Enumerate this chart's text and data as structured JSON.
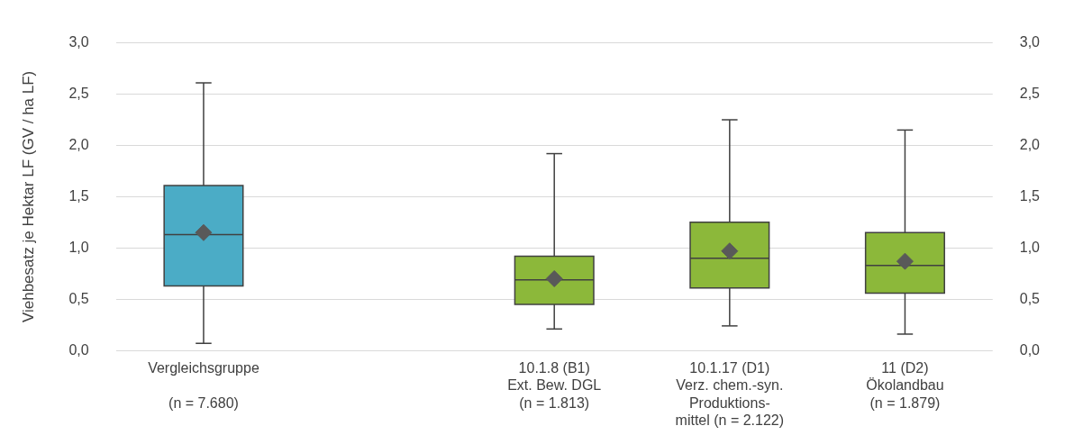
{
  "chart_data": {
    "type": "box",
    "ylabel": "Viehbesatz je Hektar LF (GV / ha LF)",
    "categories": [
      "Vergleichsgruppe\n\n(n = 7.680)",
      null,
      "10.1.8 (B1)\nExt. Bew. DGL\n(n = 1.813)",
      "10.1.17 (D1)\nVerz. chem.-syn.\nProduktions-\nmittel (n = 2.122)",
      "11 (D2)\nÖkolandbau\n(n = 1.879)"
    ],
    "boxes": [
      {
        "low": 0.07,
        "q1": 0.63,
        "median": 1.13,
        "q3": 1.61,
        "high": 2.61,
        "mean": 1.15
      },
      null,
      {
        "low": 0.21,
        "q1": 0.45,
        "median": 0.69,
        "q3": 0.92,
        "high": 1.92,
        "mean": 0.7
      },
      {
        "low": 0.24,
        "q1": 0.61,
        "median": 0.9,
        "q3": 1.25,
        "high": 2.25,
        "mean": 0.97
      },
      {
        "low": 0.16,
        "q1": 0.56,
        "median": 0.83,
        "q3": 1.15,
        "high": 2.15,
        "mean": 0.87
      }
    ],
    "colors": [
      "#4bacc6",
      null,
      "#8cb83a",
      "#8cb83a",
      "#8cb83a"
    ],
    "ylim": [
      0,
      3
    ],
    "yticks": [
      {
        "value": 0,
        "label": "0,0"
      },
      {
        "value": 0.5,
        "label": "0,5"
      },
      {
        "value": 1,
        "label": "1,0"
      },
      {
        "value": 1.5,
        "label": "1,5"
      },
      {
        "value": 2,
        "label": "2,0"
      },
      {
        "value": 2.5,
        "label": "2,5"
      },
      {
        "value": 3,
        "label": "3,0"
      }
    ],
    "y2lim": [
      0,
      3
    ],
    "y2ticks": [
      {
        "value": 0,
        "label": "0,0"
      },
      {
        "value": 0.5,
        "label": "0,5"
      },
      {
        "value": 1,
        "label": "1,0"
      },
      {
        "value": 1.5,
        "label": "1,5"
      },
      {
        "value": 2,
        "label": "2,0"
      },
      {
        "value": 2.5,
        "label": "2,5"
      },
      {
        "value": 3,
        "label": "3,0"
      }
    ],
    "grid": "y",
    "legend": false,
    "marker": "diamond"
  }
}
